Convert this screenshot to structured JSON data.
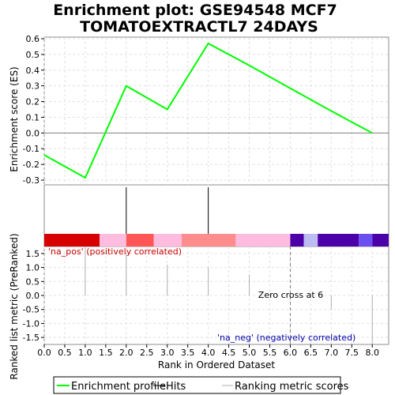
{
  "chart_data": {
    "type": "line",
    "title": "Enrichment plot: GSE94548 MCF7\nTOMATOEXTRACTL7 24DAYS",
    "xlabel": "Rank in Ordered Dataset",
    "xlim": [
      0,
      8.4
    ],
    "x_ticks": [
      0.0,
      0.5,
      1.0,
      1.5,
      2.0,
      2.5,
      3.0,
      3.5,
      4.0,
      4.5,
      5.0,
      5.5,
      6.0,
      6.5,
      7.0,
      7.5,
      8.0
    ],
    "es_panel": {
      "ylabel": "Enrichment score (ES)",
      "ylim": [
        -0.33,
        0.61
      ],
      "y_ticks": [
        0.6,
        0.5,
        0.4,
        0.3,
        0.2,
        0.1,
        0.0,
        -0.1,
        -0.2,
        -0.3
      ],
      "color": "#00ff00",
      "series": [
        {
          "name": "Enrichment profile",
          "x": [
            0,
            1,
            2,
            3,
            4,
            5,
            6,
            7,
            8
          ],
          "y": [
            -0.14,
            -0.285,
            0.3,
            0.15,
            0.57,
            0.43,
            0.285,
            0.14,
            0.0
          ]
        }
      ]
    },
    "hits": {
      "x": [
        2,
        4
      ],
      "color": "#000000"
    },
    "color_bar": [
      {
        "from": 0.0,
        "to": 1.35,
        "color": "#d60000"
      },
      {
        "from": 1.35,
        "to": 2.0,
        "color": "#ffbcdf"
      },
      {
        "from": 2.0,
        "to": 2.67,
        "color": "#ff5656"
      },
      {
        "from": 2.67,
        "to": 3.35,
        "color": "#ffbcdf"
      },
      {
        "from": 3.35,
        "to": 4.67,
        "color": "#ff8c8c"
      },
      {
        "from": 4.67,
        "to": 6.0,
        "color": "#ffbcdf"
      },
      {
        "from": 6.0,
        "to": 6.33,
        "color": "#4c00a8"
      },
      {
        "from": 6.33,
        "to": 6.67,
        "color": "#bcbcf4"
      },
      {
        "from": 6.67,
        "to": 7.67,
        "color": "#4c00a8"
      },
      {
        "from": 7.67,
        "to": 8.0,
        "color": "#6b4ef0"
      },
      {
        "from": 8.0,
        "to": 8.4,
        "color": "#4c00a8"
      }
    ],
    "metric_panel": {
      "ylabel": "Ranked list metric (PreRanked)",
      "ylim": [
        -1.75,
        1.75
      ],
      "y_ticks": [
        1.5,
        1.0,
        0.5,
        0.0,
        -0.5,
        -1.0,
        -1.5
      ],
      "bars": [
        {
          "x": 1,
          "y": 1.75
        },
        {
          "x": 2,
          "y": 1.5
        },
        {
          "x": 3,
          "y": 1.1
        },
        {
          "x": 4,
          "y": 1.0
        },
        {
          "x": 5,
          "y": 0.75
        },
        {
          "x": 7,
          "y": -0.5
        },
        {
          "x": 8,
          "y": -1.75
        }
      ],
      "zero_cross": 6.0,
      "zero_cross_label": "Zero cross at 6",
      "pos_label": "'na_pos' (positively correlated)",
      "neg_label": "'na_neg' (negatively correlated)",
      "pos_color": "#cc0000",
      "neg_color": "#0000aa"
    },
    "legend": {
      "position": "bottom",
      "items": [
        {
          "label": "Enrichment profile",
          "color": "#00ff00",
          "style": "line-thick"
        },
        {
          "label": "Hits",
          "color": "#000000",
          "style": "line"
        },
        {
          "label": "Ranking metric scores",
          "color": "#b0b0b0",
          "style": "line"
        }
      ]
    }
  }
}
